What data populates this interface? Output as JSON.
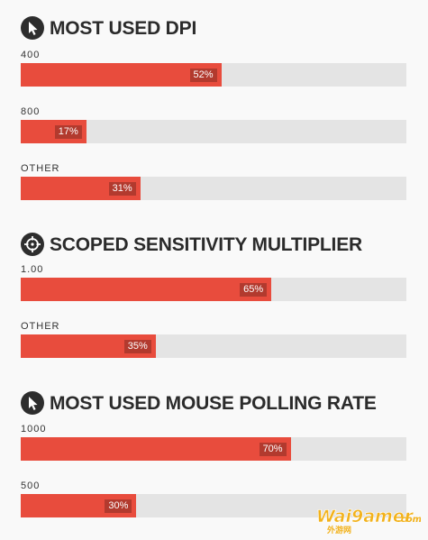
{
  "sections": [
    {
      "title": "MOST USED DPI",
      "icon": "cursor-icon",
      "stats": [
        {
          "label": "400",
          "percent_label": "52%",
          "value": 52
        },
        {
          "label": "800",
          "percent_label": "17%",
          "value": 17
        },
        {
          "label": "OTHER",
          "percent_label": "31%",
          "value": 31
        }
      ]
    },
    {
      "title": "SCOPED SENSITIVITY MULTIPLIER",
      "icon": "crosshair-icon",
      "stats": [
        {
          "label": "1.00",
          "percent_label": "65%",
          "value": 65
        },
        {
          "label": "OTHER",
          "percent_label": "35%",
          "value": 35
        }
      ]
    },
    {
      "title": "MOST USED MOUSE POLLING RATE",
      "icon": "cursor-icon",
      "stats": [
        {
          "label": "1000",
          "percent_label": "70%",
          "value": 70
        },
        {
          "label": "500",
          "percent_label": "30%",
          "value": 30
        }
      ]
    }
  ],
  "colors": {
    "bar_fill": "#e84c3d",
    "bar_track": "#e4e4e4",
    "pct_badge": "#b23a2e",
    "icon_bg": "#2d2d2d"
  },
  "watermark": {
    "text": "Wai9amer",
    "domain": ".com",
    "subtext": "外游网"
  }
}
